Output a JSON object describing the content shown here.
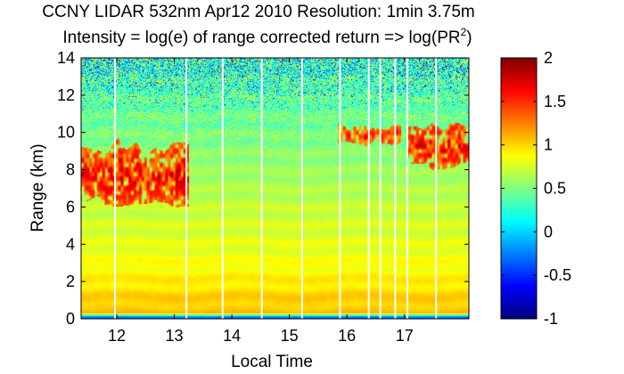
{
  "chart_data": {
    "type": "heatmap",
    "title_line1": "CCNY LIDAR 532nm Apr12 2010 Resolution: 1min 3.75m",
    "title_line2_prefix": "Intensity = log(e) of range corrected return => log(PR",
    "title_line2_sup": "2",
    "title_line2_suffix": ")",
    "xlabel": "Local Time",
    "ylabel": "Range (km)",
    "xlim": [
      11.38,
      18.12
    ],
    "ylim": [
      0,
      14
    ],
    "x_ticks": [
      12,
      13,
      14,
      15,
      16,
      17
    ],
    "x_tick_labels": [
      "12",
      "13",
      "14",
      "15",
      "16",
      "17"
    ],
    "y_ticks": [
      0,
      2,
      4,
      6,
      8,
      10,
      12,
      14
    ],
    "y_tick_labels": [
      "0",
      "2",
      "4",
      "6",
      "8",
      "10",
      "12",
      "14"
    ],
    "colorbar": {
      "range": [
        -1,
        2
      ],
      "ticks": [
        -1,
        -0.5,
        0,
        0.5,
        1,
        1.5,
        2
      ],
      "tick_labels": [
        "-1",
        "-0.5",
        "0",
        "0.5",
        "1",
        "1.5",
        "2"
      ],
      "colormap": "jet"
    },
    "data_gaps_local_time": [
      11.97,
      13.21,
      13.84,
      14.52,
      15.22,
      15.88,
      16.38,
      16.58,
      16.84,
      17.05,
      17.55
    ],
    "cloud_layers": [
      {
        "t_start": 11.38,
        "t_end": 13.25,
        "z_bottom_km": 6.3,
        "z_top_km": 9.2,
        "peak_value": 1.8
      },
      {
        "t_start": 15.85,
        "t_end": 16.95,
        "z_bottom_km": 9.4,
        "z_top_km": 10.3,
        "peak_value": 1.7
      },
      {
        "t_start": 17.05,
        "t_end": 18.12,
        "z_bottom_km": 8.2,
        "z_top_km": 10.2,
        "peak_value": 1.8
      }
    ],
    "background_profile": [
      {
        "z_km": 0.1,
        "value": -0.3
      },
      {
        "z_km": 0.3,
        "value": 1.05
      },
      {
        "z_km": 1.0,
        "value": 1.02
      },
      {
        "z_km": 2.0,
        "value": 0.92
      },
      {
        "z_km": 3.5,
        "value": 0.82
      },
      {
        "z_km": 6.0,
        "value": 0.7
      },
      {
        "z_km": 8.0,
        "value": 0.58
      },
      {
        "z_km": 10.0,
        "value": 0.48
      },
      {
        "z_km": 12.0,
        "value": 0.4
      },
      {
        "z_km": 14.0,
        "value": 0.32
      }
    ]
  }
}
